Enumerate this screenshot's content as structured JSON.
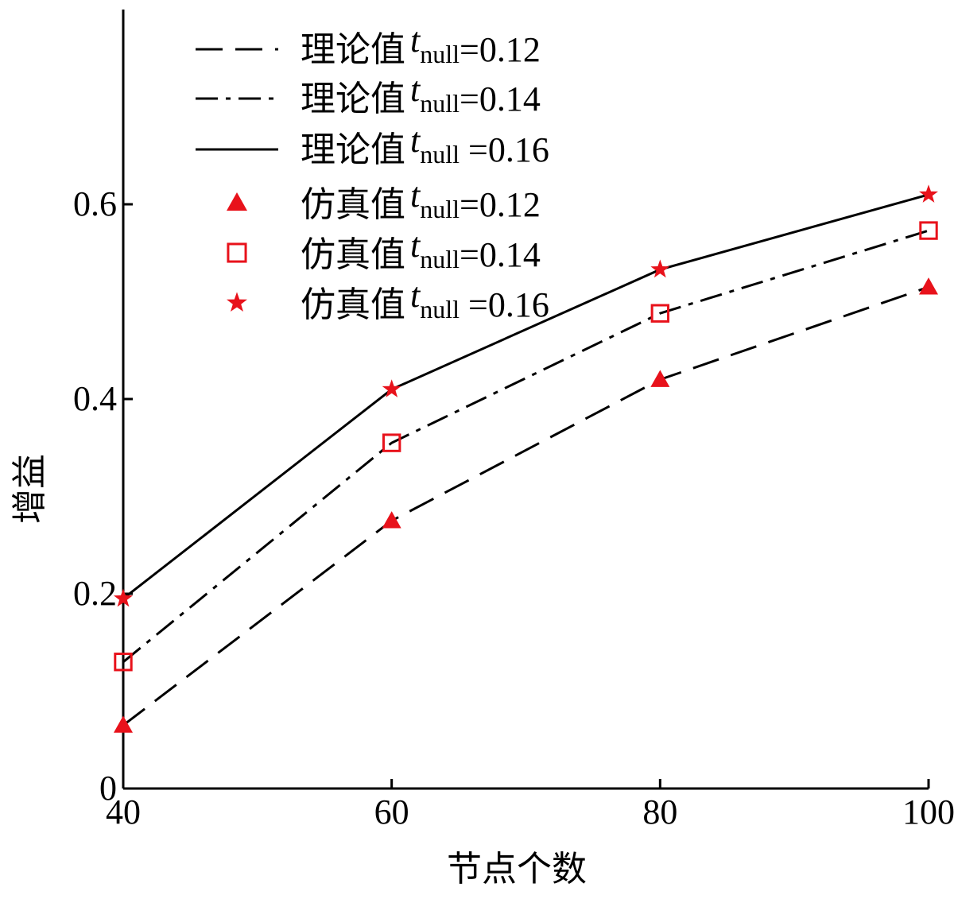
{
  "chart_data": {
    "type": "line",
    "xlabel": "节点个数",
    "ylabel": "增益",
    "x": [
      40,
      60,
      80,
      100
    ],
    "xlim": [
      40,
      100
    ],
    "ylim": [
      0,
      0.8
    ],
    "xticks": [
      "40",
      "60",
      "80",
      "100"
    ],
    "yticks": [
      "0",
      "0.2",
      "0.4",
      "0.6"
    ],
    "ytick_values": [
      0,
      0.2,
      0.4,
      0.6
    ],
    "grid": false,
    "legend_position": "top-left",
    "series": [
      {
        "name": "理论值",
        "sub": "null",
        "param": "=0.12",
        "kind": "line",
        "dash": "dashed",
        "color": "#000000",
        "values": [
          0.065,
          0.275,
          0.42,
          0.515
        ]
      },
      {
        "name": "理论值",
        "sub": "null",
        "param": "=0.14",
        "kind": "line",
        "dash": "dashdot",
        "color": "#000000",
        "values": [
          0.13,
          0.355,
          0.488,
          0.573
        ]
      },
      {
        "name": "理论值",
        "sub": "null",
        "param": " =0.16",
        "kind": "line",
        "dash": "solid",
        "color": "#000000",
        "values": [
          0.195,
          0.41,
          0.533,
          0.61
        ]
      },
      {
        "name": "仿真值",
        "sub": "null",
        "param": "=0.12",
        "kind": "marker",
        "marker": "triangle",
        "color": "#e8121b",
        "values": [
          0.065,
          0.275,
          0.42,
          0.515
        ]
      },
      {
        "name": "仿真值",
        "sub": "null",
        "param": "=0.14",
        "kind": "marker",
        "marker": "square",
        "color": "#e8121b",
        "values": [
          0.13,
          0.355,
          0.488,
          0.573
        ]
      },
      {
        "name": "仿真值",
        "sub": "null",
        "param": " =0.16",
        "kind": "marker",
        "marker": "star",
        "color": "#e8121b",
        "values": [
          0.195,
          0.41,
          0.533,
          0.61
        ]
      }
    ]
  }
}
